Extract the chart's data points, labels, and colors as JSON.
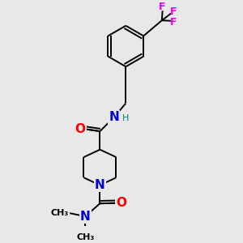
{
  "background_color": "#e8e8e8",
  "figsize": [
    3.0,
    3.0
  ],
  "dpi": 100,
  "bond_color": "#000000",
  "atom_colors": {
    "N": "#0000cd",
    "O": "#ff0000",
    "F": "#ee00ee",
    "H_color": "#008080",
    "C": "#000000"
  },
  "font_size": 10,
  "lw": 1.4,
  "xlim": [
    0.0,
    1.0
  ],
  "ylim": [
    0.0,
    1.0
  ]
}
